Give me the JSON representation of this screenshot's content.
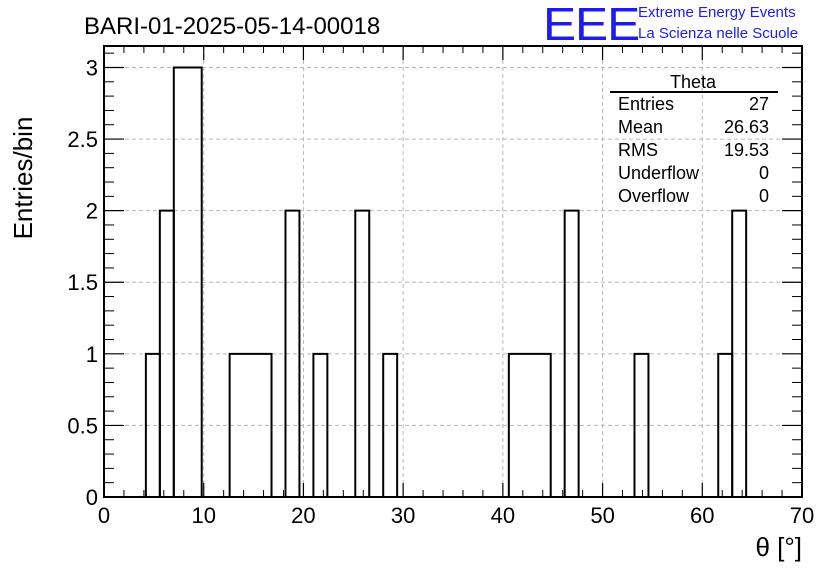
{
  "logo": {
    "mark": "EEE",
    "line1": "Extreme Energy Events",
    "line2": "La Scienza nelle Scuole",
    "color": "#1c1cf0"
  },
  "chart_data": {
    "type": "bar",
    "title": "BARI-01-2025-05-14-00018",
    "xlabel": "θ [°]",
    "ylabel": "Entries/bin",
    "xlim": [
      0,
      70
    ],
    "ylim": [
      0,
      3.15
    ],
    "x_ticks": [
      "0",
      "10",
      "20",
      "30",
      "40",
      "50",
      "60",
      "70"
    ],
    "y_ticks": [
      "0",
      "0.5",
      "1",
      "1.5",
      "2",
      "2.5",
      "3"
    ],
    "grid": true,
    "bin_width": 1.4,
    "bins": [
      {
        "x0": 4.2,
        "x1": 5.6,
        "value": 1
      },
      {
        "x0": 5.6,
        "x1": 7.0,
        "value": 2
      },
      {
        "x0": 7.0,
        "x1": 9.8,
        "value": 3
      },
      {
        "x0": 12.6,
        "x1": 16.8,
        "value": 1
      },
      {
        "x0": 18.2,
        "x1": 19.6,
        "value": 2
      },
      {
        "x0": 21.0,
        "x1": 22.4,
        "value": 1
      },
      {
        "x0": 25.2,
        "x1": 26.6,
        "value": 2
      },
      {
        "x0": 28.0,
        "x1": 29.4,
        "value": 1
      },
      {
        "x0": 40.6,
        "x1": 44.8,
        "value": 1
      },
      {
        "x0": 46.2,
        "x1": 47.6,
        "value": 2
      },
      {
        "x0": 53.2,
        "x1": 54.6,
        "value": 1
      },
      {
        "x0": 61.6,
        "x1": 63.0,
        "value": 1
      },
      {
        "x0": 63.0,
        "x1": 64.4,
        "value": 2
      }
    ],
    "stats_box": {
      "title": "Theta",
      "placement": "top-right",
      "rows": [
        {
          "label": "Entries",
          "value": "27"
        },
        {
          "label": "Mean",
          "value": "26.63"
        },
        {
          "label": "RMS",
          "value": "19.53"
        },
        {
          "label": "Underflow",
          "value": "0"
        },
        {
          "label": "Overflow",
          "value": "0"
        }
      ]
    }
  }
}
